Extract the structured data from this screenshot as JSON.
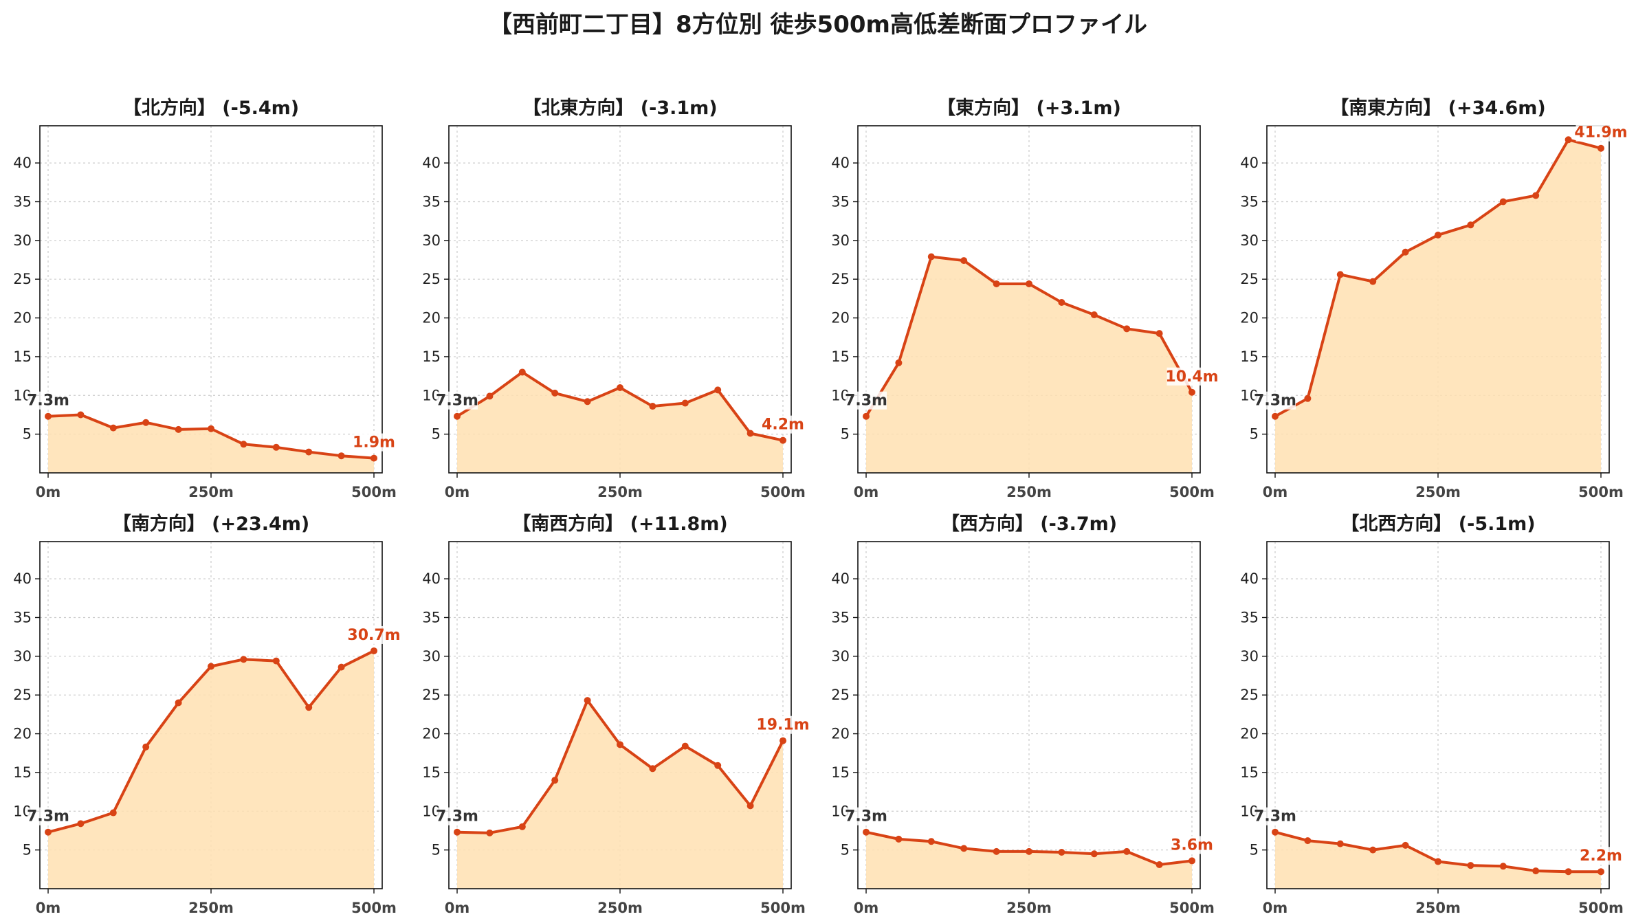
{
  "title": "【西前町二丁目】8方位別 徒歩500m高低差断面プロファイル",
  "colors": {
    "line": "#d84315",
    "fill": "#ffe0b2",
    "start_label": "#333333",
    "end_label": "#d84315",
    "grid": "#cccccc"
  },
  "chart_data": [
    {
      "type": "area",
      "title": "【北方向】 (-5.4m)",
      "x": [
        0,
        50,
        100,
        150,
        200,
        250,
        300,
        350,
        400,
        450,
        500
      ],
      "y": [
        7.3,
        7.5,
        5.8,
        6.5,
        5.6,
        5.7,
        3.7,
        3.3,
        2.7,
        2.2,
        1.9
      ],
      "xtick_labels": [
        "0m",
        "250m",
        "500m"
      ],
      "yticks": [
        5,
        10,
        15,
        20,
        25,
        30,
        35,
        40
      ],
      "ylim": [
        0,
        44.8
      ],
      "start_label": "7.3m",
      "end_label": "1.9m",
      "grid": true
    },
    {
      "type": "area",
      "title": "【北東方向】 (-3.1m)",
      "x": [
        0,
        50,
        100,
        150,
        200,
        250,
        300,
        350,
        400,
        450,
        500
      ],
      "y": [
        7.3,
        9.9,
        13.0,
        10.3,
        9.2,
        11.0,
        8.6,
        9.0,
        10.7,
        5.1,
        4.2
      ],
      "xtick_labels": [
        "0m",
        "250m",
        "500m"
      ],
      "yticks": [
        5,
        10,
        15,
        20,
        25,
        30,
        35,
        40
      ],
      "ylim": [
        0,
        44.8
      ],
      "start_label": "7.3m",
      "end_label": "4.2m",
      "grid": true
    },
    {
      "type": "area",
      "title": "【東方向】 (+3.1m)",
      "x": [
        0,
        50,
        100,
        150,
        200,
        250,
        300,
        350,
        400,
        450,
        500
      ],
      "y": [
        7.3,
        14.2,
        27.9,
        27.4,
        24.4,
        24.4,
        22.0,
        20.4,
        18.6,
        18.0,
        10.4
      ],
      "xtick_labels": [
        "0m",
        "250m",
        "500m"
      ],
      "yticks": [
        5,
        10,
        15,
        20,
        25,
        30,
        35,
        40
      ],
      "ylim": [
        0,
        44.8
      ],
      "start_label": "7.3m",
      "end_label": "10.4m",
      "grid": true
    },
    {
      "type": "area",
      "title": "【南東方向】 (+34.6m)",
      "x": [
        0,
        50,
        100,
        150,
        200,
        250,
        300,
        350,
        400,
        450,
        500
      ],
      "y": [
        7.3,
        9.6,
        25.6,
        24.7,
        28.5,
        30.7,
        32.0,
        35.0,
        35.8,
        43.0,
        41.9
      ],
      "xtick_labels": [
        "0m",
        "250m",
        "500m"
      ],
      "yticks": [
        5,
        10,
        15,
        20,
        25,
        30,
        35,
        40
      ],
      "ylim": [
        0,
        44.8
      ],
      "start_label": "7.3m",
      "end_label": "41.9m",
      "grid": true
    },
    {
      "type": "area",
      "title": "【南方向】 (+23.4m)",
      "x": [
        0,
        50,
        100,
        150,
        200,
        250,
        300,
        350,
        400,
        450,
        500
      ],
      "y": [
        7.3,
        8.4,
        9.8,
        18.3,
        24.0,
        28.7,
        29.6,
        29.4,
        23.4,
        28.6,
        30.7
      ],
      "xtick_labels": [
        "0m",
        "250m",
        "500m"
      ],
      "yticks": [
        5,
        10,
        15,
        20,
        25,
        30,
        35,
        40
      ],
      "ylim": [
        0,
        44.8
      ],
      "start_label": "7.3m",
      "end_label": "30.7m",
      "grid": true
    },
    {
      "type": "area",
      "title": "【南西方向】 (+11.8m)",
      "x": [
        0,
        50,
        100,
        150,
        200,
        250,
        300,
        350,
        400,
        450,
        500
      ],
      "y": [
        7.3,
        7.2,
        8.0,
        14.0,
        24.3,
        18.6,
        15.5,
        18.4,
        15.9,
        10.7,
        19.1
      ],
      "xtick_labels": [
        "0m",
        "250m",
        "500m"
      ],
      "yticks": [
        5,
        10,
        15,
        20,
        25,
        30,
        35,
        40
      ],
      "ylim": [
        0,
        44.8
      ],
      "start_label": "7.3m",
      "end_label": "19.1m",
      "grid": true
    },
    {
      "type": "area",
      "title": "【西方向】 (-3.7m)",
      "x": [
        0,
        50,
        100,
        150,
        200,
        250,
        300,
        350,
        400,
        450,
        500
      ],
      "y": [
        7.3,
        6.4,
        6.1,
        5.2,
        4.8,
        4.8,
        4.7,
        4.5,
        4.8,
        3.1,
        3.6
      ],
      "xtick_labels": [
        "0m",
        "250m",
        "500m"
      ],
      "yticks": [
        5,
        10,
        15,
        20,
        25,
        30,
        35,
        40
      ],
      "ylim": [
        0,
        44.8
      ],
      "start_label": "7.3m",
      "end_label": "3.6m",
      "grid": true
    },
    {
      "type": "area",
      "title": "【北西方向】 (-5.1m)",
      "x": [
        0,
        50,
        100,
        150,
        200,
        250,
        300,
        350,
        400,
        450,
        500
      ],
      "y": [
        7.3,
        6.2,
        5.8,
        5.0,
        5.6,
        3.5,
        3.0,
        2.9,
        2.3,
        2.2,
        2.2
      ],
      "xtick_labels": [
        "0m",
        "250m",
        "500m"
      ],
      "yticks": [
        5,
        10,
        15,
        20,
        25,
        30,
        35,
        40
      ],
      "ylim": [
        0,
        44.8
      ],
      "start_label": "7.3m",
      "end_label": "2.2m",
      "grid": true
    }
  ]
}
